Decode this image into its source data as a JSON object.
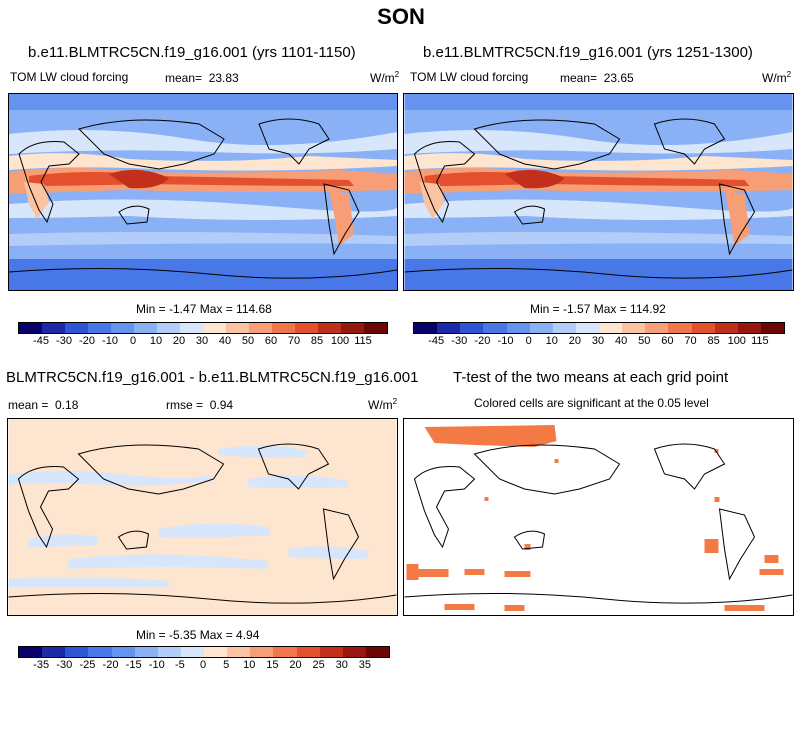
{
  "season": "SON",
  "panels": {
    "p1": {
      "title": "b.e11.BLMTRC5CN.f19_g16.001 (yrs 1101-1150)",
      "variable": "TOM LW cloud forcing",
      "mean_label": "mean=",
      "mean": "23.83",
      "units": "W/m",
      "units_exp": "2",
      "stats": "Min =  -1.47 Max = 114.68"
    },
    "p2": {
      "title": "b.e11.BLMTRC5CN.f19_g16.001 (yrs 1251-1300)",
      "variable": "TOM LW cloud forcing",
      "mean_label": "mean=",
      "mean": "23.65",
      "units": "W/m",
      "units_exp": "2",
      "stats": "Min =  -1.57 Max = 114.92"
    },
    "diff": {
      "title": "BLMTRC5CN.f19_g16.001 - b.e11.BLMTRC5CN.f19_g16.001",
      "mean_label": "mean =",
      "mean": "0.18",
      "rmse_label": "rmse =",
      "rmse": "0.94",
      "units": "W/m",
      "units_exp": "2",
      "stats": "Min =  -5.35 Max =   4.94"
    },
    "ttest": {
      "title": "T-test of the two means at each grid point",
      "subtitle": "Colored cells are significant at the 0.05 level"
    }
  },
  "colorbar_abs": {
    "labels": [
      "-45",
      "-30",
      "-20",
      "-10",
      "0",
      "10",
      "20",
      "30",
      "40",
      "50",
      "60",
      "70",
      "85",
      "100",
      "115"
    ],
    "colors": [
      "#08006b",
      "#1c2aa8",
      "#2f55d4",
      "#4877e8",
      "#6593f0",
      "#8ab1f5",
      "#b1cdf8",
      "#d8e6fb",
      "#fde5cf",
      "#fbc3a2",
      "#f79e76",
      "#f2764d",
      "#e4502d",
      "#c2301b",
      "#97170f",
      "#6e0505"
    ]
  },
  "colorbar_diff": {
    "labels": [
      "-35",
      "-30",
      "-25",
      "-20",
      "-15",
      "-10",
      "-5",
      "0",
      "5",
      "10",
      "15",
      "20",
      "25",
      "30",
      "35"
    ],
    "colors": [
      "#08006b",
      "#1c2aa8",
      "#2f55d4",
      "#4877e8",
      "#6593f0",
      "#8ab1f5",
      "#b1cdf8",
      "#d8e6fb",
      "#fde5cf",
      "#fbc3a2",
      "#f79e76",
      "#f2764d",
      "#e4502d",
      "#c2301b",
      "#97170f",
      "#6e0505"
    ]
  },
  "map_colors": {
    "ocean_base": "#8ab1f5",
    "polar": "#4877e8",
    "itcz_core": "#e4502d",
    "warm": "#f79e76",
    "pale_warm": "#fde5cf",
    "pale_cool": "#d8e6fb",
    "diff_base": "#fde5cf",
    "diff_cool": "#d8e6fb",
    "sig": "#f47a45"
  }
}
